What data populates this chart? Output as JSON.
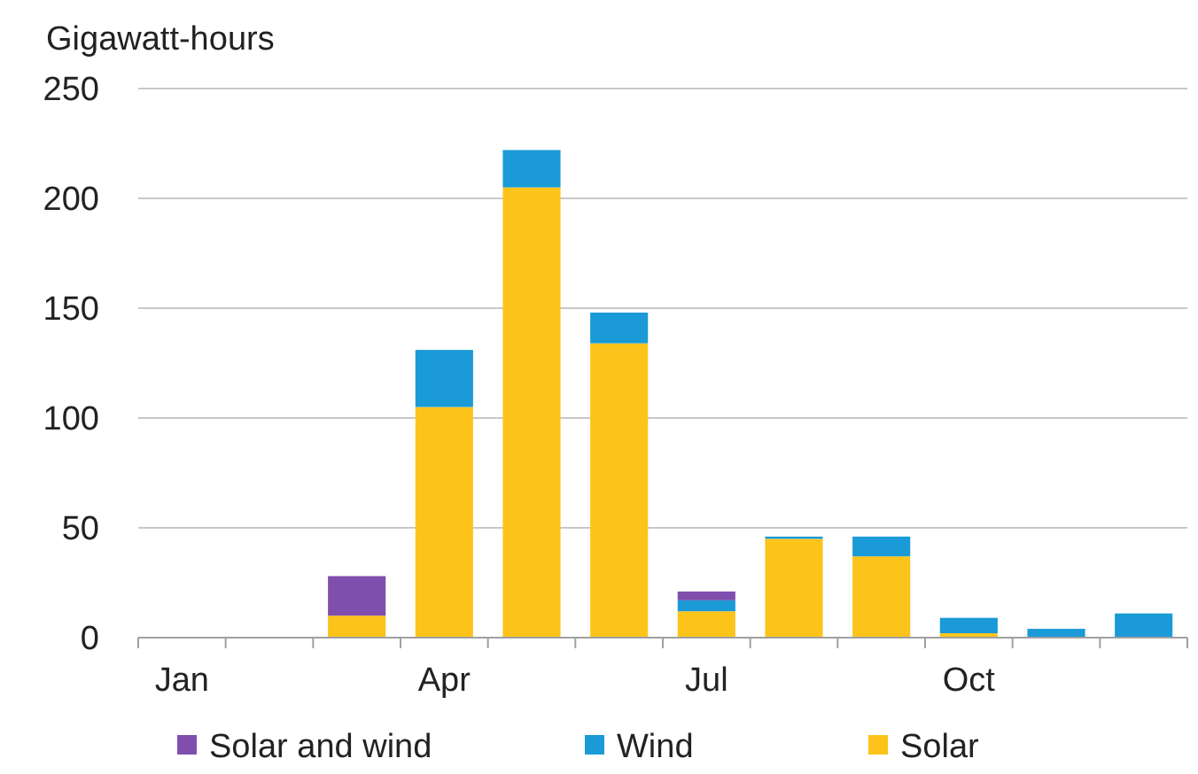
{
  "chart_data": {
    "type": "bar",
    "ylabel": "Gigawatt-hours",
    "stacked": true,
    "categories": [
      "Jan",
      null,
      null,
      "Apr",
      null,
      null,
      "Jul",
      null,
      null,
      "Oct",
      null,
      null
    ],
    "series": [
      {
        "name": "Solar",
        "color": "#fcc41a",
        "values": [
          0,
          0,
          10,
          105,
          205,
          134,
          12,
          45,
          37,
          2,
          0,
          0
        ]
      },
      {
        "name": "Wind",
        "color": "#1a9ad6",
        "values": [
          0,
          0,
          0,
          26,
          17,
          14,
          5,
          1,
          9,
          7,
          4,
          11
        ]
      },
      {
        "name": "Solar and wind",
        "color": "#7f4fae",
        "values": [
          0,
          0,
          18,
          0,
          0,
          0,
          4,
          0,
          0,
          0,
          0,
          0
        ]
      }
    ],
    "ylim": [
      0,
      250
    ],
    "yticks": [
      0,
      50,
      100,
      150,
      200,
      250
    ],
    "grid": "y",
    "legend": "bottom"
  }
}
